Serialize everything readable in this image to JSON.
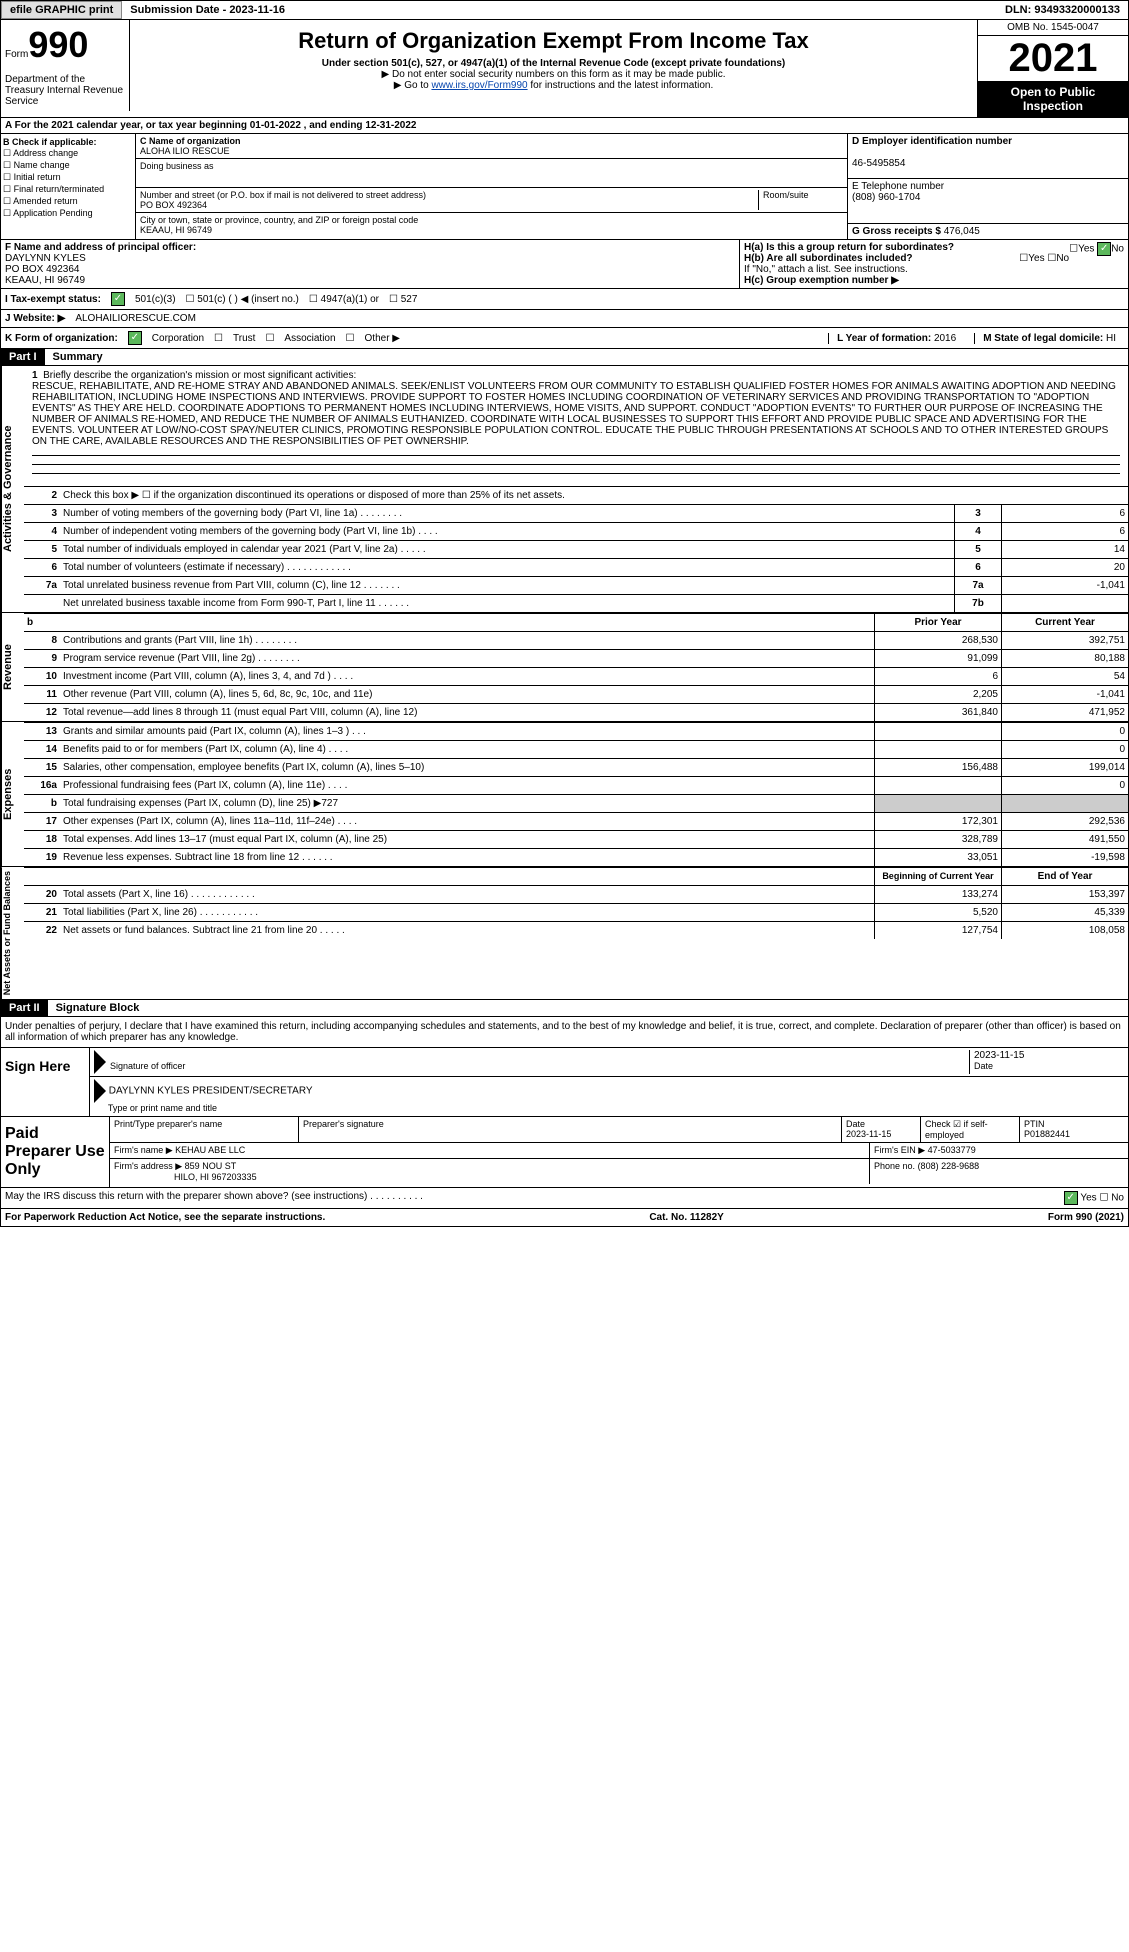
{
  "header": {
    "efile": "efile GRAPHIC print",
    "submission": "Submission Date - 2023-11-16",
    "dln": "DLN: 93493320000133"
  },
  "form": {
    "form_label": "Form",
    "form_num": "990",
    "title": "Return of Organization Exempt From Income Tax",
    "subtitle1": "Under section 501(c), 527, or 4947(a)(1) of the Internal Revenue Code (except private foundations)",
    "subtitle2": "▶ Do not enter social security numbers on this form as it may be made public.",
    "subtitle3_pre": "▶ Go to ",
    "subtitle3_link": "www.irs.gov/Form990",
    "subtitle3_post": " for instructions and the latest information.",
    "omb": "OMB No. 1545-0047",
    "year": "2021",
    "open": "Open to Public Inspection",
    "dept": "Department of the Treasury Internal Revenue Service"
  },
  "row_a": "A For the 2021 calendar year, or tax year beginning 01-01-2022   , and ending 12-31-2022",
  "col_b": {
    "label": "B Check if applicable:",
    "items": [
      "☐ Address change",
      "☐ Name change",
      "☐ Initial return",
      "☐ Final return/terminated",
      "☐ Amended return",
      "☐ Application Pending"
    ]
  },
  "col_c": {
    "name_lbl": "C Name of organization",
    "name": "ALOHA ILIO RESCUE",
    "dba_lbl": "Doing business as",
    "dba": "",
    "addr_lbl": "Number and street (or P.O. box if mail is not delivered to street address)",
    "addr": "PO BOX 492364",
    "room_lbl": "Room/suite",
    "city_lbl": "City or town, state or province, country, and ZIP or foreign postal code",
    "city": "KEAAU, HI  96749"
  },
  "col_d": {
    "ein_lbl": "D Employer identification number",
    "ein": "46-5495854",
    "tel_lbl": "E Telephone number",
    "tel": "(808) 960-1704",
    "gross_lbl": "G Gross receipts $",
    "gross": "476,045"
  },
  "section_f": {
    "lbl": "F  Name and address of principal officer:",
    "name": "DAYLYNN KYLES",
    "addr1": "PO BOX 492364",
    "addr2": "KEAAU, HI  96749"
  },
  "section_h": {
    "ha": "H(a)  Is this a group return for subordinates?",
    "hb": "H(b)  Are all subordinates included?",
    "hb_note": "If \"No,\" attach a list. See instructions.",
    "hc": "H(c)  Group exemption number ▶",
    "yes": "Yes",
    "no": "No"
  },
  "tax_exempt": {
    "lbl": "I   Tax-exempt status:",
    "opt1": "501(c)(3)",
    "opt2": "501(c) (  ) ◀ (insert no.)",
    "opt3": "4947(a)(1) or",
    "opt4": "527"
  },
  "website": {
    "lbl": "J  Website: ▶",
    "val": "ALOHAILIORESCUE.COM"
  },
  "form_org": {
    "lbl": "K Form of organization:",
    "corp": "Corporation",
    "trust": "Trust",
    "assoc": "Association",
    "other": "Other ▶",
    "year_lbl": "L Year of formation:",
    "year": "2016",
    "state_lbl": "M State of legal domicile:",
    "state": "HI"
  },
  "part1": {
    "num": "Part I",
    "title": "Summary"
  },
  "mission": {
    "line1_lbl": "1",
    "line1_text": "Briefly describe the organization's mission or most significant activities:",
    "body": "RESCUE, REHABILITATE, AND RE-HOME STRAY AND ABANDONED ANIMALS. SEEK/ENLIST VOLUNTEERS FROM OUR COMMUNITY TO ESTABLISH QUALIFIED FOSTER HOMES FOR ANIMALS AWAITING ADOPTION AND NEEDING REHABILITATION, INCLUDING HOME INSPECTIONS AND INTERVIEWS. PROVIDE SUPPORT TO FOSTER HOMES INCLUDING COORDINATION OF VETERINARY SERVICES AND PROVIDING TRANSPORTATION TO \"ADOPTION EVENTS\" AS THEY ARE HELD. COORDINATE ADOPTIONS TO PERMANENT HOMES INCLUDING INTERVIEWS, HOME VISITS, AND SUPPORT. CONDUCT \"ADOPTION EVENTS\" TO FURTHER OUR PURPOSE OF INCREASING THE NUMBER OF ANIMALS RE-HOMED, AND REDUCE THE NUMBER OF ANIMALS EUTHANIZED. COORDINATE WITH LOCAL BUSINESSES TO SUPPORT THIS EFFORT AND PROVIDE PUBLIC SPACE AND ADVERTISING FOR THE EVENTS. VOLUNTEER AT LOW/NO-COST SPAY/NEUTER CLINICS, PROMOTING RESPONSIBLE POPULATION CONTROL. EDUCATE THE PUBLIC THROUGH PRESENTATIONS AT SCHOOLS AND TO OTHER INTERESTED GROUPS ON THE CARE, AVAILABLE RESOURCES AND THE RESPONSIBILITIES OF PET OWNERSHIP."
  },
  "activities_lines": [
    {
      "n": "2",
      "t": "Check this box ▶ ☐ if the organization discontinued its operations or disposed of more than 25% of its net assets."
    },
    {
      "n": "3",
      "t": "Number of voting members of the governing body (Part VI, line 1a)  .   .   .   .   .   .   .   .",
      "box": "3",
      "v": "6"
    },
    {
      "n": "4",
      "t": "Number of independent voting members of the governing body (Part VI, line 1b)   .   .   .   .",
      "box": "4",
      "v": "6"
    },
    {
      "n": "5",
      "t": "Total number of individuals employed in calendar year 2021 (Part V, line 2a)   .   .   .   .   .",
      "box": "5",
      "v": "14"
    },
    {
      "n": "6",
      "t": "Total number of volunteers (estimate if necessary)  .   .   .   .   .   .   .   .   .   .   .   .",
      "box": "6",
      "v": "20"
    },
    {
      "n": "7a",
      "t": "Total unrelated business revenue from Part VIII, column (C), line 12   .   .   .   .   .   .   .",
      "box": "7a",
      "v": "-1,041"
    },
    {
      "n": "",
      "t": "Net unrelated business taxable income from Form 990-T, Part I, line 11   .   .   .   .   .   .",
      "box": "7b",
      "v": ""
    }
  ],
  "prior_current_header": {
    "b": "b",
    "prior": "Prior Year",
    "current": "Current Year"
  },
  "revenue_label": "Revenue",
  "revenue_lines": [
    {
      "n": "8",
      "t": "Contributions and grants (Part VIII, line 1h)   .   .   .   .   .   .   .   .",
      "p": "268,530",
      "c": "392,751"
    },
    {
      "n": "9",
      "t": "Program service revenue (Part VIII, line 2g)   .   .   .   .   .   .   .   .",
      "p": "91,099",
      "c": "80,188"
    },
    {
      "n": "10",
      "t": "Investment income (Part VIII, column (A), lines 3, 4, and 7d )   .   .   .   .",
      "p": "6",
      "c": "54"
    },
    {
      "n": "11",
      "t": "Other revenue (Part VIII, column (A), lines 5, 6d, 8c, 9c, 10c, and 11e)",
      "p": "2,205",
      "c": "-1,041"
    },
    {
      "n": "12",
      "t": "Total revenue—add lines 8 through 11 (must equal Part VIII, column (A), line 12)",
      "p": "361,840",
      "c": "471,952"
    }
  ],
  "expenses_label": "Expenses",
  "expenses_lines": [
    {
      "n": "13",
      "t": "Grants and similar amounts paid (Part IX, column (A), lines 1–3 )  .   .   .",
      "p": "",
      "c": "0"
    },
    {
      "n": "14",
      "t": "Benefits paid to or for members (Part IX, column (A), line 4)   .   .   .   .",
      "p": "",
      "c": "0"
    },
    {
      "n": "15",
      "t": "Salaries, other compensation, employee benefits (Part IX, column (A), lines 5–10)",
      "p": "156,488",
      "c": "199,014"
    },
    {
      "n": "16a",
      "t": "Professional fundraising fees (Part IX, column (A), line 11e)   .   .   .   .",
      "p": "",
      "c": "0"
    },
    {
      "n": "b",
      "t": "Total fundraising expenses (Part IX, column (D), line 25) ▶727",
      "p": "",
      "c": "",
      "shaded": true
    },
    {
      "n": "17",
      "t": "Other expenses (Part IX, column (A), lines 11a–11d, 11f–24e)   .   .   .   .",
      "p": "172,301",
      "c": "292,536"
    },
    {
      "n": "18",
      "t": "Total expenses. Add lines 13–17 (must equal Part IX, column (A), line 25)",
      "p": "328,789",
      "c": "491,550"
    },
    {
      "n": "19",
      "t": "Revenue less expenses. Subtract line 18 from line 12   .   .   .   .   .   .",
      "p": "33,051",
      "c": "-19,598"
    }
  ],
  "netassets_label": "Net Assets or Fund Balances",
  "netassets_header": {
    "begin": "Beginning of Current Year",
    "end": "End of Year"
  },
  "netassets_lines": [
    {
      "n": "20",
      "t": "Total assets (Part X, line 16)  .   .   .   .   .   .   .   .   .   .   .   .",
      "p": "133,274",
      "c": "153,397"
    },
    {
      "n": "21",
      "t": "Total liabilities (Part X, line 26)   .   .   .   .   .   .   .   .   .   .   .",
      "p": "5,520",
      "c": "45,339"
    },
    {
      "n": "22",
      "t": "Net assets or fund balances. Subtract line 21 from line 20  .   .   .   .   .",
      "p": "127,754",
      "c": "108,058"
    }
  ],
  "part2": {
    "num": "Part II",
    "title": "Signature Block"
  },
  "sig_declare": "Under penalties of perjury, I declare that I have examined this return, including accompanying schedules and statements, and to the best of my knowledge and belief, it is true, correct, and complete. Declaration of preparer (other than officer) is based on all information of which preparer has any knowledge.",
  "sign": {
    "label": "Sign Here",
    "sig_lbl": "Signature of officer",
    "date": "2023-11-15",
    "date_lbl": "Date",
    "name": "DAYLYNN KYLES  PRESIDENT/SECRETARY",
    "name_lbl": "Type or print name and title"
  },
  "preparer": {
    "label": "Paid Preparer Use Only",
    "print_lbl": "Print/Type preparer's name",
    "print": "",
    "sig_lbl": "Preparer's signature",
    "date_lbl": "Date",
    "date": "2023-11-15",
    "check_lbl": "Check ☑ if self-employed",
    "ptin_lbl": "PTIN",
    "ptin": "P01882441",
    "firm_name_lbl": "Firm's name    ▶",
    "firm_name": "KEHAU ABE LLC",
    "firm_ein_lbl": "Firm's EIN ▶",
    "firm_ein": "47-5033779",
    "firm_addr_lbl": "Firm's address ▶",
    "firm_addr": "859 NOU ST",
    "firm_addr2": "HILO, HI  967203335",
    "phone_lbl": "Phone no.",
    "phone": "(808) 228-9688"
  },
  "discuss": {
    "text": "May the IRS discuss this return with the preparer shown above? (see instructions)   .   .   .   .   .   .   .   .   .   .",
    "yes": "Yes",
    "no": "No"
  },
  "footer": {
    "pra": "For Paperwork Reduction Act Notice, see the separate instructions.",
    "cat": "Cat. No. 11282Y",
    "form": "Form 990 (2021)"
  },
  "activities_label": "Activities & Governance"
}
